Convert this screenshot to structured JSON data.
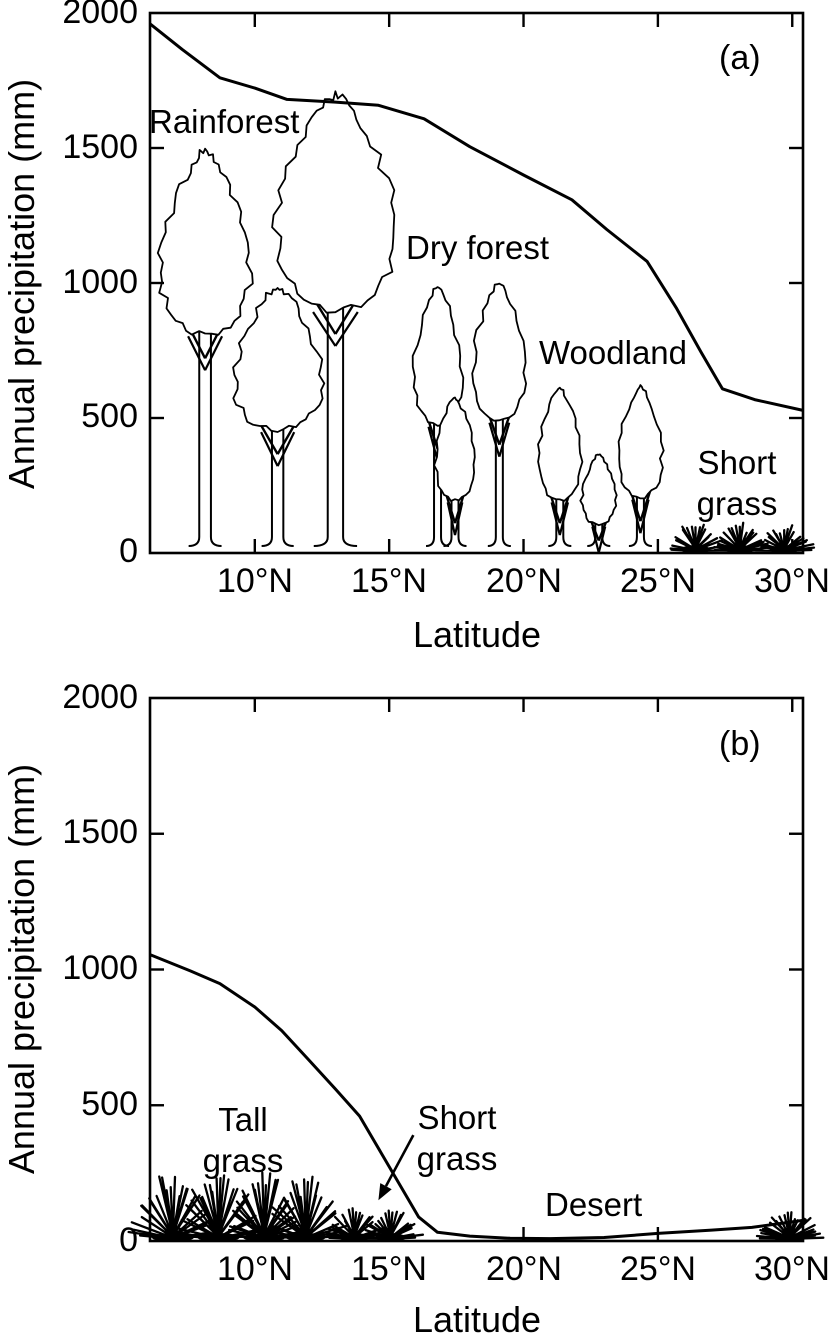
{
  "figure": {
    "description": "Annual precipitation versus latitude with vegetation types",
    "background_color": "#ffffff",
    "line_color": "#000000"
  },
  "chart_data": [
    {
      "type": "line",
      "panel_label": "(a)",
      "xlabel": "Latitude",
      "ylabel": "Annual precipitation (mm)",
      "xlim": [
        6.1,
        30.4
      ],
      "ylim": [
        0,
        2000
      ],
      "x_ticks": [
        10,
        15,
        20,
        25,
        30
      ],
      "x_tick_labels": [
        "10°N",
        "15°N",
        "20°N",
        "25°N",
        "30°N"
      ],
      "y_ticks": [
        0,
        500,
        1000,
        1500,
        2000
      ],
      "y_tick_labels": [
        "0",
        "500",
        "1000",
        "1500",
        "2000"
      ],
      "grid": false,
      "series": [
        {
          "name": "Annual precipitation",
          "points": [
            [
              6.1,
              1960
            ],
            [
              7.3,
              1865
            ],
            [
              8.7,
              1760
            ],
            [
              10.0,
              1722
            ],
            [
              11.2,
              1680
            ],
            [
              13.0,
              1670
            ],
            [
              14.6,
              1658
            ],
            [
              16.3,
              1608
            ],
            [
              18.0,
              1505
            ],
            [
              20.0,
              1400
            ],
            [
              21.8,
              1308
            ],
            [
              23.1,
              1198
            ],
            [
              24.6,
              1080
            ],
            [
              25.7,
              905
            ],
            [
              26.6,
              745
            ],
            [
              27.4,
              608
            ],
            [
              28.6,
              568
            ],
            [
              30.4,
              528
            ]
          ]
        }
      ],
      "biomes": [
        {
          "name": "rainforest",
          "label": "Rainforest"
        },
        {
          "name": "dry-forest",
          "label": "Dry forest"
        },
        {
          "name": "woodland",
          "label": "Woodland"
        },
        {
          "name": "short-grass",
          "label": "Short\ngrass"
        }
      ],
      "vegetation": [
        {
          "kind": "tree",
          "lat": 8.15,
          "top_mm": 1490,
          "canopy_bottom_mm": 810,
          "width_lat": 3.95
        },
        {
          "kind": "tree",
          "lat": 13.0,
          "top_mm": 1695,
          "canopy_bottom_mm": 900,
          "width_lat": 5.2
        },
        {
          "kind": "tree",
          "lat": 10.85,
          "top_mm": 980,
          "canopy_bottom_mm": 455,
          "width_lat": 3.85
        },
        {
          "kind": "tree",
          "lat": 16.8,
          "top_mm": 985,
          "canopy_bottom_mm": 475,
          "width_lat": 2.1
        },
        {
          "kind": "tree",
          "lat": 19.1,
          "top_mm": 1000,
          "canopy_bottom_mm": 490,
          "width_lat": 2.3
        },
        {
          "kind": "tree",
          "lat": 17.45,
          "top_mm": 575,
          "canopy_bottom_mm": 195,
          "width_lat": 1.7
        },
        {
          "kind": "tree",
          "lat": 21.35,
          "top_mm": 610,
          "canopy_bottom_mm": 195,
          "width_lat": 1.9
        },
        {
          "kind": "tree",
          "lat": 22.8,
          "top_mm": 365,
          "canopy_bottom_mm": 105,
          "width_lat": 1.5
        },
        {
          "kind": "tree",
          "lat": 24.35,
          "top_mm": 620,
          "canopy_bottom_mm": 205,
          "width_lat": 1.9
        },
        {
          "kind": "grass",
          "lat": 26.4,
          "height_mm": 85,
          "width_lat": 2.0
        },
        {
          "kind": "grass",
          "lat": 28.05,
          "height_mm": 85,
          "width_lat": 2.0
        },
        {
          "kind": "grass",
          "lat": 29.7,
          "height_mm": 85,
          "width_lat": 2.0
        }
      ]
    },
    {
      "type": "line",
      "panel_label": "(b)",
      "xlabel": "Latitude",
      "ylabel": "Annual precipitation (mm)",
      "xlim": [
        6.1,
        30.4
      ],
      "ylim": [
        0,
        2000
      ],
      "x_ticks": [
        10,
        15,
        20,
        25,
        30
      ],
      "x_tick_labels": [
        "10°N",
        "15°N",
        "20°N",
        "25°N",
        "30°N"
      ],
      "y_ticks": [
        0,
        500,
        1000,
        1500,
        2000
      ],
      "y_tick_labels": [
        "0",
        "500",
        "1000",
        "1500",
        "2000"
      ],
      "grid": false,
      "series": [
        {
          "name": "Annual precipitation",
          "points": [
            [
              6.1,
              1055
            ],
            [
              7.6,
              995
            ],
            [
              8.7,
              948
            ],
            [
              10.0,
              862
            ],
            [
              11.0,
              775
            ],
            [
              12.0,
              668
            ],
            [
              13.0,
              560
            ],
            [
              13.9,
              460
            ],
            [
              16.1,
              88
            ],
            [
              16.8,
              32
            ],
            [
              18.0,
              18
            ],
            [
              19.5,
              10
            ],
            [
              21.0,
              9
            ],
            [
              23.0,
              13
            ],
            [
              25.0,
              28
            ],
            [
              27.0,
              40
            ],
            [
              28.5,
              50
            ],
            [
              30.4,
              76
            ]
          ]
        }
      ],
      "biomes": [
        {
          "name": "tall-grass",
          "label": "Tall\ngrass"
        },
        {
          "name": "short-grass",
          "label": "Short\ngrass"
        },
        {
          "name": "desert",
          "label": "Desert"
        }
      ],
      "arrow": {
        "from_lat_mm": [
          15.9,
          390
        ],
        "to_lat_mm": [
          14.6,
          150
        ]
      },
      "vegetation": [
        {
          "kind": "grass",
          "lat": 6.95,
          "height_mm": 200,
          "width_lat": 2.9
        },
        {
          "kind": "grass",
          "lat": 8.65,
          "height_mm": 205,
          "width_lat": 2.9
        },
        {
          "kind": "grass",
          "lat": 10.35,
          "height_mm": 205,
          "width_lat": 2.9
        },
        {
          "kind": "grass",
          "lat": 11.9,
          "height_mm": 190,
          "width_lat": 2.7
        },
        {
          "kind": "grass",
          "lat": 13.7,
          "height_mm": 92,
          "width_lat": 2.1
        },
        {
          "kind": "grass",
          "lat": 15.05,
          "height_mm": 92,
          "width_lat": 2.1
        },
        {
          "kind": "grass",
          "lat": 29.9,
          "height_mm": 95,
          "width_lat": 2.3
        }
      ]
    }
  ]
}
